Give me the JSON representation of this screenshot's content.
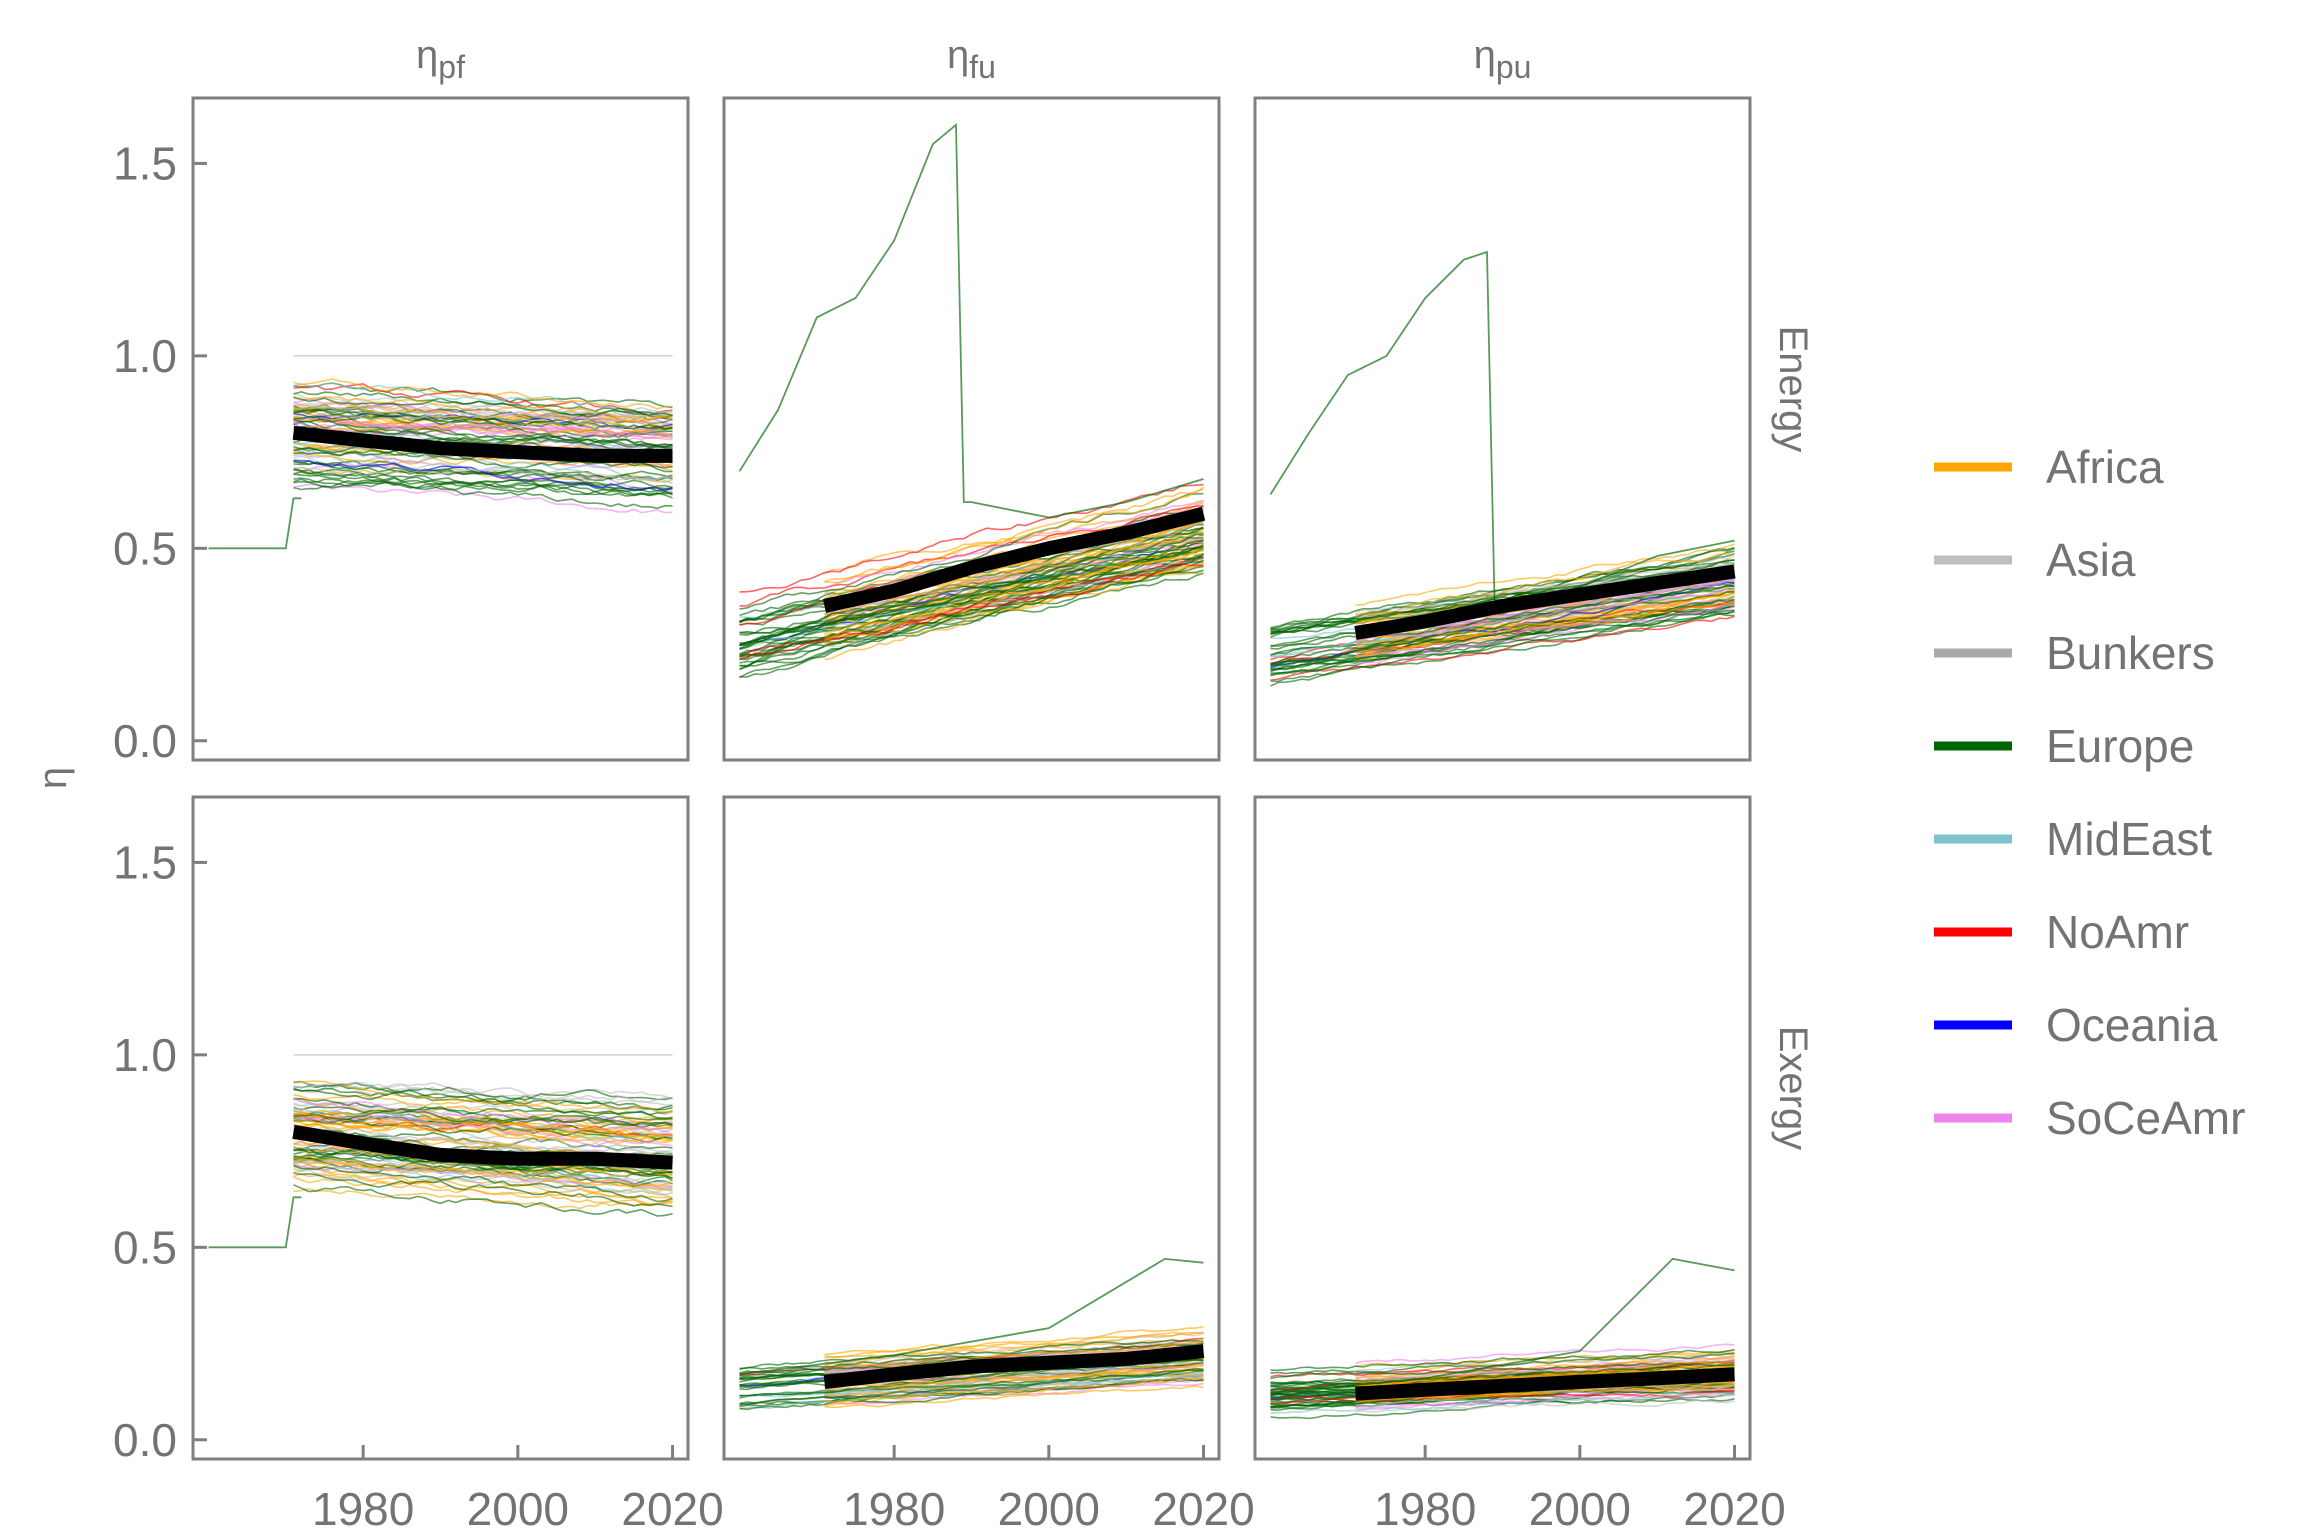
{
  "chart_data": {
    "type": "line",
    "description_free": true,
    "ylabel": "η",
    "xlabel": "",
    "xlim": [
      1958,
      2022
    ],
    "ylim": [
      -0.05,
      1.67
    ],
    "x_ticks": [
      "1980",
      "2000",
      "2020"
    ],
    "y_ticks": [
      "0.0",
      "0.5",
      "1.0",
      "1.5"
    ],
    "column_labels": [
      {
        "base": "η",
        "sub": "pf"
      },
      {
        "base": "η",
        "sub": "fu"
      },
      {
        "base": "η",
        "sub": "pu"
      }
    ],
    "row_labels": [
      "Energy",
      "Exergy"
    ],
    "legend": [
      {
        "name": "Africa",
        "color": "#FFA500"
      },
      {
        "name": "Asia",
        "color": "#BEBEBE"
      },
      {
        "name": "Bunkers",
        "color": "#A9A9A9"
      },
      {
        "name": "Europe",
        "color": "#006400"
      },
      {
        "name": "MidEast",
        "color": "#7FC4CC"
      },
      {
        "name": "NoAmr",
        "color": "#FF0000"
      },
      {
        "name": "Oceania",
        "color": "#0000FF"
      },
      {
        "name": "SoCeAmr",
        "color": "#EE82EE"
      }
    ],
    "facets": [
      {
        "row": "Energy",
        "column": "pf",
        "mean_x": [
          1971,
          1980,
          1990,
          2000,
          2010,
          2020
        ],
        "mean_y": [
          0.8,
          0.78,
          0.76,
          0.75,
          0.74,
          0.74
        ],
        "start": 1971,
        "level_start": 0.8,
        "level_end": 0.76,
        "spread": 0.1,
        "outlier": {
          "x": [
            1960,
            1970,
            1971,
            1972
          ],
          "y": [
            0.5,
            0.5,
            0.63,
            0.63
          ]
        }
      },
      {
        "row": "Energy",
        "column": "fu",
        "mean_x": [
          1971,
          1980,
          1990,
          2000,
          2010,
          2020
        ],
        "mean_y": [
          0.35,
          0.39,
          0.45,
          0.5,
          0.54,
          0.59
        ],
        "start": 1960,
        "level_start": 0.33,
        "level_end": 0.55,
        "spread": 0.09,
        "outlier": {
          "x": [
            1960,
            1965,
            1970,
            1975,
            1980,
            1985,
            1988,
            1989,
            1990,
            2000,
            2010,
            2020
          ],
          "y": [
            0.7,
            0.86,
            1.1,
            1.15,
            1.3,
            1.55,
            1.6,
            0.62,
            0.62,
            0.58,
            0.62,
            0.68
          ]
        }
      },
      {
        "row": "Energy",
        "column": "pu",
        "mean_x": [
          1971,
          1980,
          1990,
          2000,
          2010,
          2020
        ],
        "mean_y": [
          0.28,
          0.31,
          0.35,
          0.38,
          0.41,
          0.44
        ],
        "start": 1960,
        "level_start": 0.27,
        "level_end": 0.42,
        "spread": 0.07,
        "outlier": {
          "x": [
            1960,
            1965,
            1970,
            1975,
            1980,
            1985,
            1988,
            1989,
            1990,
            2000,
            2010,
            2020
          ],
          "y": [
            0.64,
            0.8,
            0.95,
            1.0,
            1.15,
            1.25,
            1.27,
            0.33,
            0.33,
            0.4,
            0.48,
            0.52
          ]
        }
      },
      {
        "row": "Exergy",
        "column": "pf",
        "mean_x": [
          1971,
          1980,
          1990,
          2000,
          2010,
          2020
        ],
        "mean_y": [
          0.8,
          0.77,
          0.74,
          0.73,
          0.73,
          0.72
        ],
        "start": 1971,
        "level_start": 0.79,
        "level_end": 0.74,
        "spread": 0.1,
        "outlier": {
          "x": [
            1960,
            1970,
            1971,
            1972
          ],
          "y": [
            0.5,
            0.5,
            0.63,
            0.63
          ]
        }
      },
      {
        "row": "Exergy",
        "column": "fu",
        "mean_x": [
          1971,
          1980,
          1990,
          2000,
          2010,
          2020
        ],
        "mean_y": [
          0.15,
          0.17,
          0.19,
          0.2,
          0.21,
          0.23
        ],
        "start": 1960,
        "level_start": 0.15,
        "level_end": 0.21,
        "spread": 0.05,
        "outlier": {
          "x": [
            1960,
            1980,
            2000,
            2015,
            2020
          ],
          "y": [
            0.17,
            0.22,
            0.29,
            0.47,
            0.46
          ]
        }
      },
      {
        "row": "Exergy",
        "column": "pu",
        "mean_x": [
          1971,
          1980,
          1990,
          2000,
          2010,
          2020
        ],
        "mean_y": [
          0.12,
          0.13,
          0.14,
          0.15,
          0.16,
          0.17
        ],
        "start": 1960,
        "level_start": 0.13,
        "level_end": 0.17,
        "spread": 0.05,
        "outlier": {
          "x": [
            1960,
            1980,
            2000,
            2012,
            2020
          ],
          "y": [
            0.12,
            0.16,
            0.23,
            0.47,
            0.44
          ]
        }
      }
    ]
  }
}
